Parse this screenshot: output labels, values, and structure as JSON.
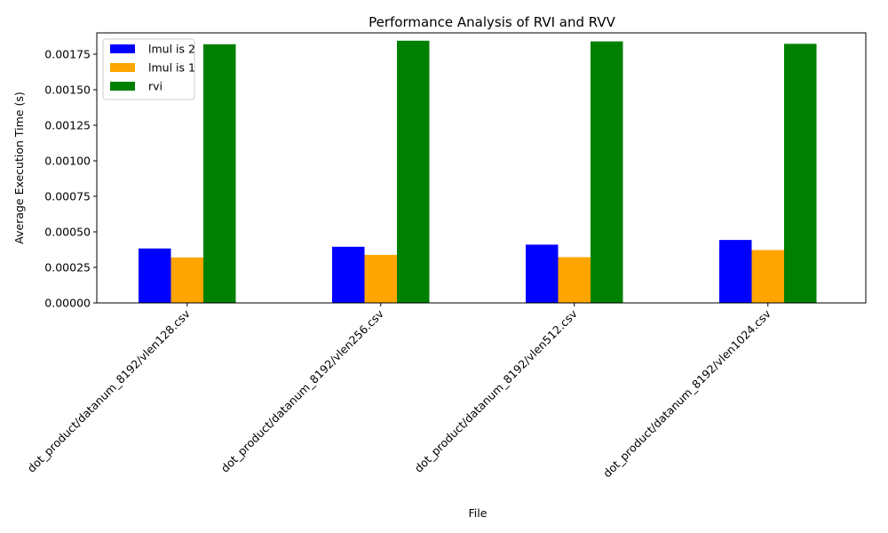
{
  "chart_data": {
    "type": "bar",
    "title": "Performance Analysis of RVI and RVV",
    "xlabel": "File",
    "ylabel": "Average Execution Time (s)",
    "categories": [
      "dot_product/datanum_8192/vlen128.csv",
      "dot_product/datanum_8192/vlen256.csv",
      "dot_product/datanum_8192/vlen512.csv",
      "dot_product/datanum_8192/vlen1024.csv"
    ],
    "series": [
      {
        "name": "lmul is 2",
        "color": "#0000ff",
        "values": [
          0.000383,
          0.000395,
          0.00041,
          0.000443
        ]
      },
      {
        "name": "lmul is 1",
        "color": "#ffa500",
        "values": [
          0.00032,
          0.000338,
          0.000322,
          0.000372
        ]
      },
      {
        "name": "rvi",
        "color": "#008000",
        "values": [
          0.00182,
          0.001845,
          0.00184,
          0.001823
        ]
      }
    ],
    "ylim": [
      0,
      0.0019
    ],
    "yticks": [
      "0.00000",
      "0.00025",
      "0.00050",
      "0.00075",
      "0.00100",
      "0.00125",
      "0.00150",
      "0.00175"
    ],
    "ytick_values": [
      0,
      0.00025,
      0.0005,
      0.00075,
      0.001,
      0.00125,
      0.0015,
      0.00175
    ],
    "grid": false,
    "legend_position": "top-left",
    "xtick_rotation_deg": 45
  }
}
